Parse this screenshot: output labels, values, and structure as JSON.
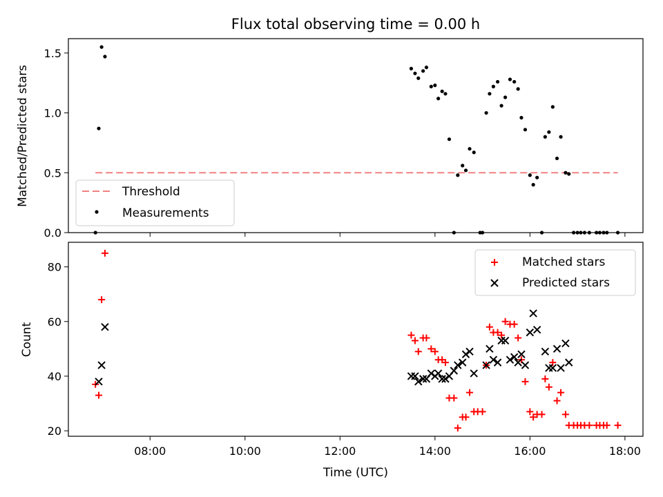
{
  "title": "Flux total observing time = 0.00 h",
  "chart_data": [
    {
      "type": "scatter",
      "ylabel": "Matched/Predicted stars",
      "xlabel": "",
      "xlim": [
        6.28,
        18.38
      ],
      "ylim": [
        0,
        1.62
      ],
      "yticks": [
        {
          "value": 0.0,
          "label": "0.0"
        },
        {
          "value": 0.5,
          "label": "0.5"
        },
        {
          "value": 1.0,
          "label": "1.0"
        },
        {
          "value": 1.5,
          "label": "1.5"
        }
      ],
      "xticks": [
        8,
        10,
        12,
        14,
        16,
        18
      ],
      "grid": false,
      "legend": "lower-left",
      "threshold": {
        "name": "Threshold",
        "value": 0.5,
        "x": [
          6.85,
          17.85
        ],
        "color": "#f08080"
      },
      "series": [
        {
          "name": "Measurements",
          "marker": "dot",
          "color": "#000000",
          "points": [
            [
              6.85,
              0.0
            ],
            [
              6.92,
              0.87
            ],
            [
              6.98,
              1.55
            ],
            [
              7.05,
              1.47
            ],
            [
              13.5,
              1.37
            ],
            [
              13.58,
              1.33
            ],
            [
              13.65,
              1.29
            ],
            [
              13.75,
              1.35
            ],
            [
              13.82,
              1.38
            ],
            [
              13.92,
              1.22
            ],
            [
              14.0,
              1.23
            ],
            [
              14.07,
              1.12
            ],
            [
              14.15,
              1.18
            ],
            [
              14.22,
              1.16
            ],
            [
              14.3,
              0.78
            ],
            [
              14.4,
              0.0
            ],
            [
              14.48,
              0.48
            ],
            [
              14.58,
              0.56
            ],
            [
              14.65,
              0.52
            ],
            [
              14.73,
              0.7
            ],
            [
              14.82,
              0.67
            ],
            [
              14.95,
              0.0
            ],
            [
              15.0,
              0.0
            ],
            [
              15.08,
              1.0
            ],
            [
              15.15,
              1.16
            ],
            [
              15.23,
              1.22
            ],
            [
              15.32,
              1.26
            ],
            [
              15.4,
              1.06
            ],
            [
              15.48,
              1.13
            ],
            [
              15.58,
              1.28
            ],
            [
              15.67,
              1.26
            ],
            [
              15.75,
              1.2
            ],
            [
              15.82,
              0.96
            ],
            [
              15.9,
              0.86
            ],
            [
              16.0,
              0.48
            ],
            [
              16.07,
              0.4
            ],
            [
              16.15,
              0.46
            ],
            [
              16.25,
              0.0
            ],
            [
              16.32,
              0.8
            ],
            [
              16.4,
              0.84
            ],
            [
              16.48,
              1.05
            ],
            [
              16.57,
              0.62
            ],
            [
              16.65,
              0.8
            ],
            [
              16.75,
              0.5
            ],
            [
              16.82,
              0.49
            ],
            [
              16.92,
              0.0
            ],
            [
              17.0,
              0.0
            ],
            [
              17.07,
              0.0
            ],
            [
              17.15,
              0.0
            ],
            [
              17.25,
              0.0
            ],
            [
              17.4,
              0.0
            ],
            [
              17.47,
              0.0
            ],
            [
              17.55,
              0.0
            ],
            [
              17.62,
              0.0
            ],
            [
              17.85,
              0.0
            ]
          ]
        }
      ]
    },
    {
      "type": "scatter",
      "ylabel": "Count",
      "xlabel": "Time (UTC)",
      "xlim": [
        6.28,
        18.38
      ],
      "ylim": [
        18,
        89
      ],
      "yticks": [
        {
          "value": 20,
          "label": "20"
        },
        {
          "value": 40,
          "label": "40"
        },
        {
          "value": 60,
          "label": "60"
        },
        {
          "value": 80,
          "label": "80"
        }
      ],
      "xticks": [
        {
          "value": 8,
          "label": "08:00"
        },
        {
          "value": 10,
          "label": "10:00"
        },
        {
          "value": 12,
          "label": "12:00"
        },
        {
          "value": 14,
          "label": "14:00"
        },
        {
          "value": 16,
          "label": "16:00"
        },
        {
          "value": 18,
          "label": "18:00"
        }
      ],
      "grid": false,
      "legend": "upper-right",
      "series": [
        {
          "name": "Matched stars",
          "marker": "plus",
          "color": "#ff0000",
          "points": [
            [
              6.85,
              37
            ],
            [
              6.92,
              33
            ],
            [
              6.98,
              68
            ],
            [
              7.05,
              85
            ],
            [
              13.5,
              55
            ],
            [
              13.58,
              53
            ],
            [
              13.65,
              49
            ],
            [
              13.75,
              54
            ],
            [
              13.82,
              54
            ],
            [
              13.92,
              50
            ],
            [
              14.0,
              49
            ],
            [
              14.07,
              46
            ],
            [
              14.15,
              46
            ],
            [
              14.22,
              45
            ],
            [
              14.3,
              32
            ],
            [
              14.4,
              32
            ],
            [
              14.48,
              21
            ],
            [
              14.58,
              25
            ],
            [
              14.65,
              25
            ],
            [
              14.73,
              34
            ],
            [
              14.82,
              27
            ],
            [
              14.9,
              27
            ],
            [
              15.0,
              27
            ],
            [
              15.08,
              44
            ],
            [
              15.15,
              58
            ],
            [
              15.23,
              56
            ],
            [
              15.32,
              56
            ],
            [
              15.4,
              55
            ],
            [
              15.48,
              60
            ],
            [
              15.58,
              59
            ],
            [
              15.67,
              59
            ],
            [
              15.75,
              54
            ],
            [
              15.82,
              46
            ],
            [
              15.9,
              38
            ],
            [
              16.0,
              27
            ],
            [
              16.07,
              25
            ],
            [
              16.15,
              26
            ],
            [
              16.25,
              26
            ],
            [
              16.32,
              39
            ],
            [
              16.4,
              36
            ],
            [
              16.48,
              45
            ],
            [
              16.57,
              31
            ],
            [
              16.65,
              34
            ],
            [
              16.75,
              26
            ],
            [
              16.82,
              22
            ],
            [
              16.92,
              22
            ],
            [
              17.0,
              22
            ],
            [
              17.07,
              22
            ],
            [
              17.15,
              22
            ],
            [
              17.25,
              22
            ],
            [
              17.4,
              22
            ],
            [
              17.47,
              22
            ],
            [
              17.55,
              22
            ],
            [
              17.62,
              22
            ],
            [
              17.85,
              22
            ]
          ]
        },
        {
          "name": "Predicted stars",
          "marker": "x",
          "color": "#000000",
          "points": [
            [
              6.92,
              38
            ],
            [
              6.98,
              44
            ],
            [
              7.05,
              58
            ],
            [
              13.5,
              40
            ],
            [
              13.58,
              40
            ],
            [
              13.65,
              38
            ],
            [
              13.75,
              39
            ],
            [
              13.82,
              39
            ],
            [
              13.92,
              41
            ],
            [
              14.0,
              40
            ],
            [
              14.07,
              41
            ],
            [
              14.15,
              39
            ],
            [
              14.22,
              39
            ],
            [
              14.3,
              40
            ],
            [
              14.4,
              42
            ],
            [
              14.48,
              44
            ],
            [
              14.58,
              45
            ],
            [
              14.65,
              48
            ],
            [
              14.73,
              49
            ],
            [
              14.82,
              41
            ],
            [
              15.08,
              44
            ],
            [
              15.15,
              50
            ],
            [
              15.23,
              46
            ],
            [
              15.32,
              45
            ],
            [
              15.4,
              53
            ],
            [
              15.48,
              53
            ],
            [
              15.58,
              46
            ],
            [
              15.67,
              47
            ],
            [
              15.75,
              45
            ],
            [
              15.82,
              48
            ],
            [
              15.9,
              44
            ],
            [
              16.0,
              56
            ],
            [
              16.07,
              63
            ],
            [
              16.15,
              57
            ],
            [
              16.32,
              49
            ],
            [
              16.4,
              43
            ],
            [
              16.48,
              43
            ],
            [
              16.57,
              50
            ],
            [
              16.65,
              43
            ],
            [
              16.75,
              52
            ],
            [
              16.82,
              45
            ]
          ]
        }
      ]
    }
  ]
}
